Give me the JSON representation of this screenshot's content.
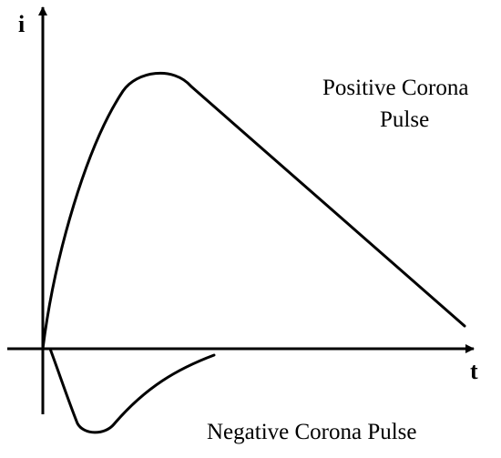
{
  "axes": {
    "y_label": "i",
    "x_label": "t"
  },
  "labels": {
    "positive_line1": "Positive Corona",
    "positive_line2": "Pulse",
    "negative": "Negative Corona Pulse"
  },
  "colors": {
    "stroke": "#000000",
    "background": "#ffffff"
  }
}
